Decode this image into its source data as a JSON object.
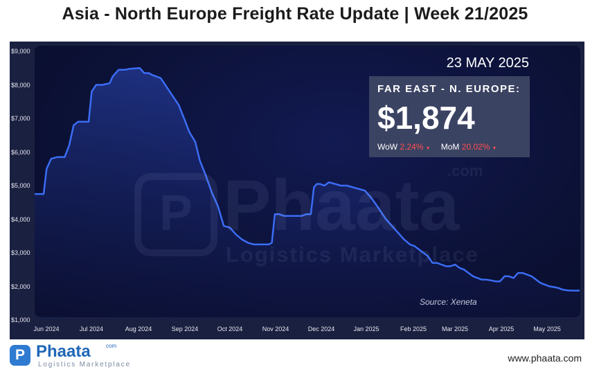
{
  "title": "Asia - North Europe Freight Rate Update | Week 21/2025",
  "date": "23 MAY 2025",
  "box": {
    "label": "FAR EAST - N. EUROPE:",
    "value": "$1,874",
    "wow_label": "WoW",
    "wow_value": "2.24%",
    "mom_label": "MoM",
    "mom_value": "20.02%"
  },
  "source": "Source: Xeneta",
  "watermark": {
    "name": "Phaata",
    "sub": "Logistics Marketplace",
    "com": ".com"
  },
  "footer": {
    "brand": "Phaata",
    "brand_com": "com",
    "brand_sub": "Logistics Marketplace",
    "website": "www.phaata.com"
  },
  "colors": {
    "line": "#3b6df5",
    "background": "#0c1238",
    "negative": "#ff4d4d"
  },
  "chart_data": {
    "type": "line",
    "title": "",
    "xlabel": "",
    "ylabel": "",
    "ylim": [
      1000,
      9000
    ],
    "y_ticks": [
      "$1,000",
      "$2,000",
      "$3,000",
      "$4,000",
      "$5,000",
      "$6,000",
      "$7,000",
      "$8,000",
      "$9,000"
    ],
    "y_tick_values": [
      1000,
      2000,
      3000,
      4000,
      5000,
      6000,
      7000,
      8000,
      9000
    ],
    "x_range": [
      0,
      363
    ],
    "x_ticks": [
      "Jun 2024",
      "Jul 2024",
      "Aug 2024",
      "Sep 2024",
      "Oct 2024",
      "Nov 2024",
      "Dec 2024",
      "Jan 2025",
      "Feb 2025",
      "Mar 2025",
      "Apr 2025",
      "May 2025"
    ],
    "x_tick_days": [
      6,
      36,
      67,
      98,
      128,
      159,
      189,
      220,
      251,
      279,
      310,
      340
    ],
    "series": [
      {
        "name": "Far East - N. Europe",
        "x": [
          0,
          6,
          8,
          11,
          15,
          20,
          23,
          26,
          29,
          32,
          36,
          38,
          41,
          45,
          50,
          52,
          56,
          60,
          64,
          70,
          73,
          76,
          78,
          84,
          87,
          90,
          93,
          96,
          100,
          103,
          107,
          110,
          114,
          118,
          122,
          126,
          130,
          134,
          138,
          142,
          146,
          150,
          154,
          156,
          158,
          160,
          163,
          166,
          170,
          174,
          178,
          181,
          184,
          186,
          188,
          190,
          193,
          196,
          200,
          204,
          208,
          212,
          216,
          220,
          224,
          228,
          231,
          234,
          238,
          242,
          246,
          250,
          253,
          256,
          259,
          262,
          265,
          268,
          271,
          274,
          277,
          280,
          283,
          286,
          289,
          292,
          295,
          298,
          301,
          304,
          307,
          310,
          313,
          316,
          319,
          322,
          325,
          328,
          331,
          334,
          337,
          340,
          343,
          346,
          349,
          352,
          355,
          358,
          361,
          363
        ],
        "values": [
          4750,
          4750,
          5500,
          5800,
          5850,
          5850,
          6200,
          6800,
          6900,
          6900,
          6900,
          7800,
          8000,
          8000,
          8050,
          8250,
          8450,
          8450,
          8480,
          8500,
          8350,
          8350,
          8300,
          8200,
          8000,
          7800,
          7600,
          7400,
          6950,
          6600,
          6300,
          5750,
          5300,
          4800,
          4400,
          3800,
          3750,
          3550,
          3400,
          3300,
          3250,
          3250,
          3250,
          3250,
          3300,
          4150,
          4150,
          4100,
          4100,
          4100,
          4100,
          4150,
          4150,
          4950,
          5050,
          5050,
          5000,
          5100,
          5050,
          5000,
          5000,
          4950,
          4900,
          4850,
          4650,
          4400,
          4200,
          4000,
          3800,
          3600,
          3400,
          3250,
          3200,
          3100,
          3000,
          2900,
          2700,
          2700,
          2650,
          2600,
          2600,
          2650,
          2550,
          2500,
          2400,
          2300,
          2250,
          2200,
          2200,
          2180,
          2150,
          2150,
          2300,
          2300,
          2250,
          2400,
          2400,
          2350,
          2300,
          2200,
          2100,
          2050,
          2000,
          1980,
          1950,
          1900,
          1880,
          1874,
          1874,
          1874
        ]
      }
    ]
  }
}
